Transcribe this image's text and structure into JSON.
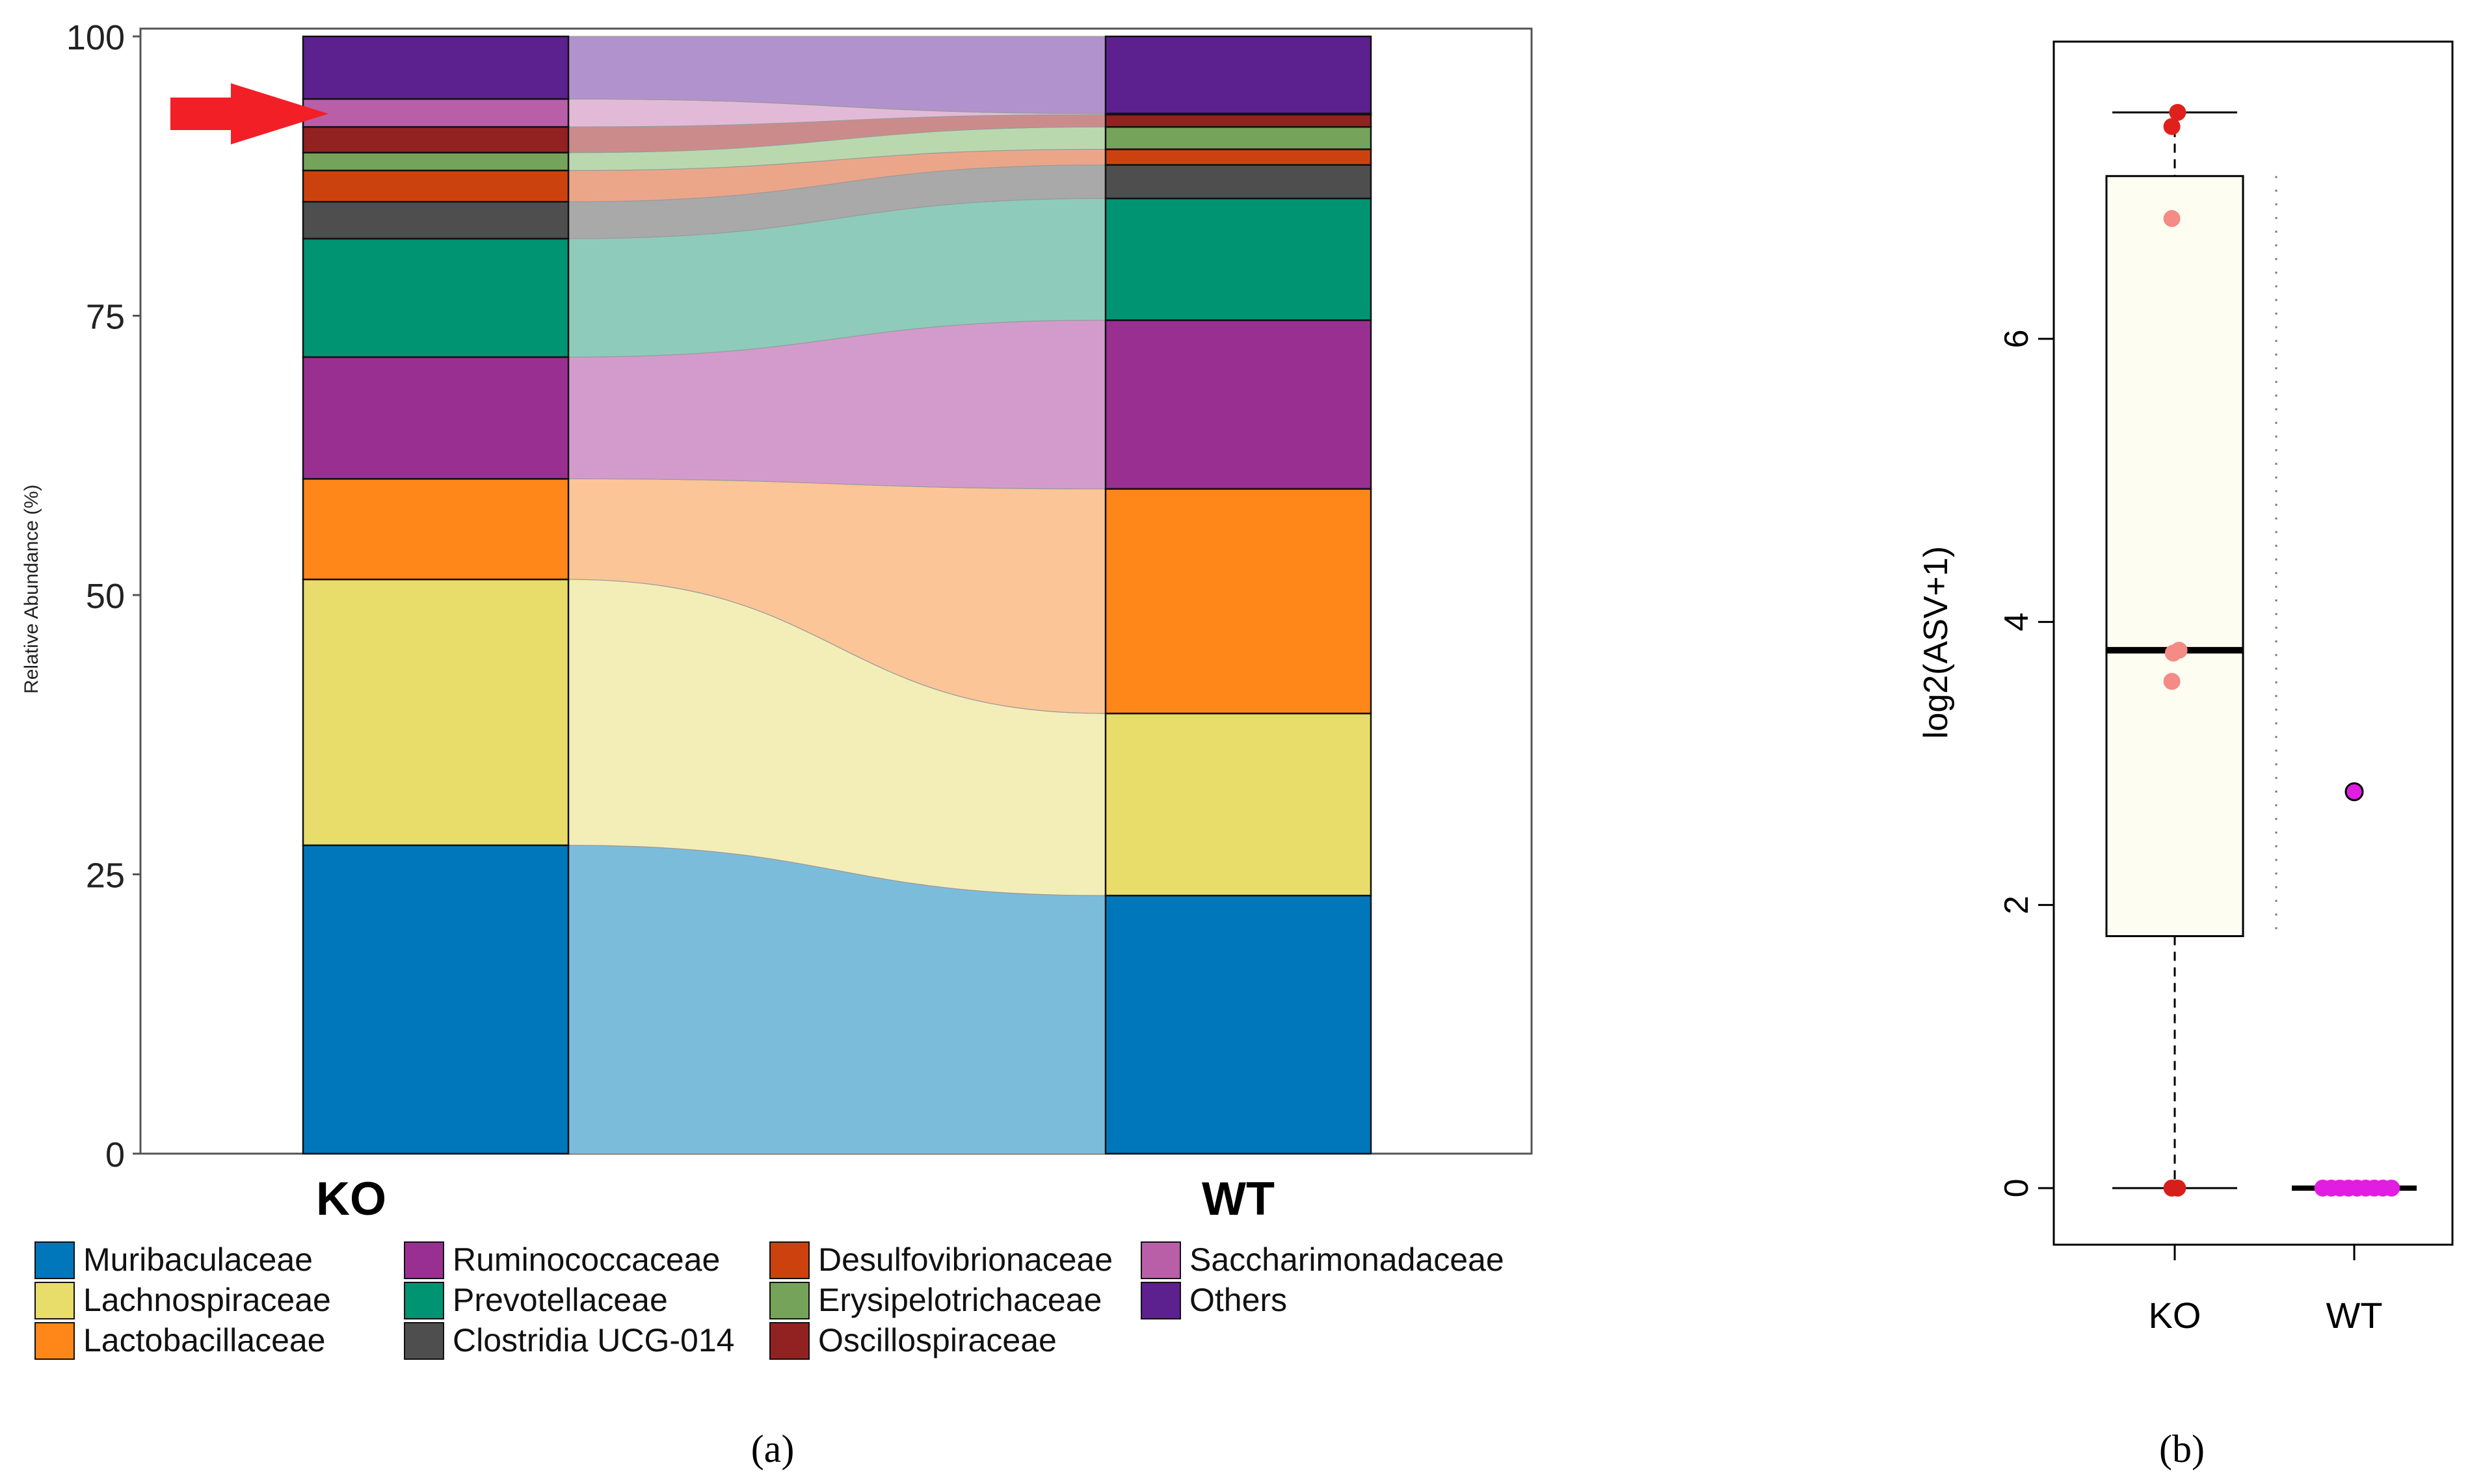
{
  "figure": {
    "panel_a_label": "(a)",
    "panel_b_label": "(b)"
  },
  "chart_data": [
    {
      "type": "bar",
      "subtype": "stacked-alluvial",
      "title": "",
      "xlabel": "",
      "ylabel": "Relative Abundance (%)",
      "ylim": [
        0,
        100
      ],
      "yticks": [
        0,
        25,
        50,
        75,
        100
      ],
      "categories": [
        "KO",
        "WT"
      ],
      "annotation": "red arrow pointing at Saccharimonadaceae in KO",
      "series": [
        {
          "name": "Muribaculaceae",
          "color": "#0077BB",
          "flow_color": "#7BBCDB",
          "values": [
            27.6,
            23.1
          ]
        },
        {
          "name": "Lachnospiraceae",
          "color": "#E8DC6B",
          "flow_color": "#F3EDB8",
          "values": [
            23.8,
            16.3
          ]
        },
        {
          "name": "Lactobacillaceae",
          "color": "#FF8719",
          "flow_color": "#FCC597",
          "values": [
            9.0,
            20.1
          ]
        },
        {
          "name": "Ruminococcaceae",
          "color": "#9A2F92",
          "flow_color": "#D39BCC",
          "values": [
            10.9,
            15.1
          ]
        },
        {
          "name": "Prevotellaceae",
          "color": "#009473",
          "flow_color": "#8ECBBB",
          "values": [
            10.6,
            10.9
          ]
        },
        {
          "name": "Clostridia UCG-014",
          "color": "#4E4E4E",
          "flow_color": "#A9A9A9",
          "values": [
            3.3,
            3.0
          ]
        },
        {
          "name": "Desulfovibrionaceae",
          "color": "#CC420F",
          "flow_color": "#EBA68A",
          "values": [
            2.8,
            1.4
          ]
        },
        {
          "name": "Erysipelotrichaceae",
          "color": "#76A35A",
          "flow_color": "#BAD8AE",
          "values": [
            1.6,
            2.0
          ]
        },
        {
          "name": "Oscillospiraceae",
          "color": "#922222",
          "flow_color": "#CC8B8B",
          "values": [
            2.3,
            1.1
          ]
        },
        {
          "name": "Saccharimonadaceae",
          "color": "#B95FA7",
          "flow_color": "#E2BAD8",
          "values": [
            2.5,
            0.1
          ]
        },
        {
          "name": "Others",
          "color": "#5C208F",
          "flow_color": "#B292CC",
          "values": [
            5.6,
            6.9
          ]
        }
      ]
    },
    {
      "type": "box",
      "title": "",
      "xlabel": "",
      "ylabel": "log2(ASV+1)",
      "ylim": [
        -0.4,
        8.1
      ],
      "yticks": [
        0,
        2,
        4,
        6
      ],
      "categories": [
        "KO",
        "WT"
      ],
      "boxes": [
        {
          "group": "KO",
          "min": 0,
          "q1": 1.78,
          "median": 3.8,
          "q3": 7.15,
          "max": 7.6,
          "box_color": "#FDFDF2"
        }
      ],
      "wt_points_color": "#E11DE1",
      "points": [
        {
          "group": "KO",
          "x_offset": 0.02,
          "y": 7.6,
          "color": "#E0201C"
        },
        {
          "group": "KO",
          "x_offset": -0.02,
          "y": 7.5,
          "color": "#E0201C"
        },
        {
          "group": "KO",
          "x_offset": -0.02,
          "y": 6.85,
          "color": "#F48B85"
        },
        {
          "group": "KO",
          "x_offset": 0.03,
          "y": 3.8,
          "color": "#F48B85"
        },
        {
          "group": "KO",
          "x_offset": -0.01,
          "y": 3.78,
          "color": "#F48B85"
        },
        {
          "group": "KO",
          "x_offset": -0.02,
          "y": 3.58,
          "color": "#F48B85"
        },
        {
          "group": "KO",
          "x_offset": -0.02,
          "y": 0,
          "color": "#D61F1A"
        },
        {
          "group": "KO",
          "x_offset": 0.02,
          "y": 0,
          "color": "#D61F1A"
        },
        {
          "group": "WT",
          "x_offset": 0,
          "y": 2.8,
          "color": "#E11DE1"
        },
        {
          "group": "WT",
          "x_offset": -0.22,
          "y": 0,
          "color": "#E11DE1"
        },
        {
          "group": "WT",
          "x_offset": -0.16,
          "y": 0,
          "color": "#E11DE1"
        },
        {
          "group": "WT",
          "x_offset": -0.1,
          "y": 0,
          "color": "#E11DE1"
        },
        {
          "group": "WT",
          "x_offset": -0.04,
          "y": 0,
          "color": "#E11DE1"
        },
        {
          "group": "WT",
          "x_offset": 0.02,
          "y": 0,
          "color": "#E11DE1"
        },
        {
          "group": "WT",
          "x_offset": 0.08,
          "y": 0,
          "color": "#E11DE1"
        },
        {
          "group": "WT",
          "x_offset": 0.14,
          "y": 0,
          "color": "#E11DE1"
        },
        {
          "group": "WT",
          "x_offset": 0.2,
          "y": 0,
          "color": "#E11DE1"
        },
        {
          "group": "WT",
          "x_offset": 0.26,
          "y": 0,
          "color": "#E11DE1"
        }
      ]
    }
  ]
}
